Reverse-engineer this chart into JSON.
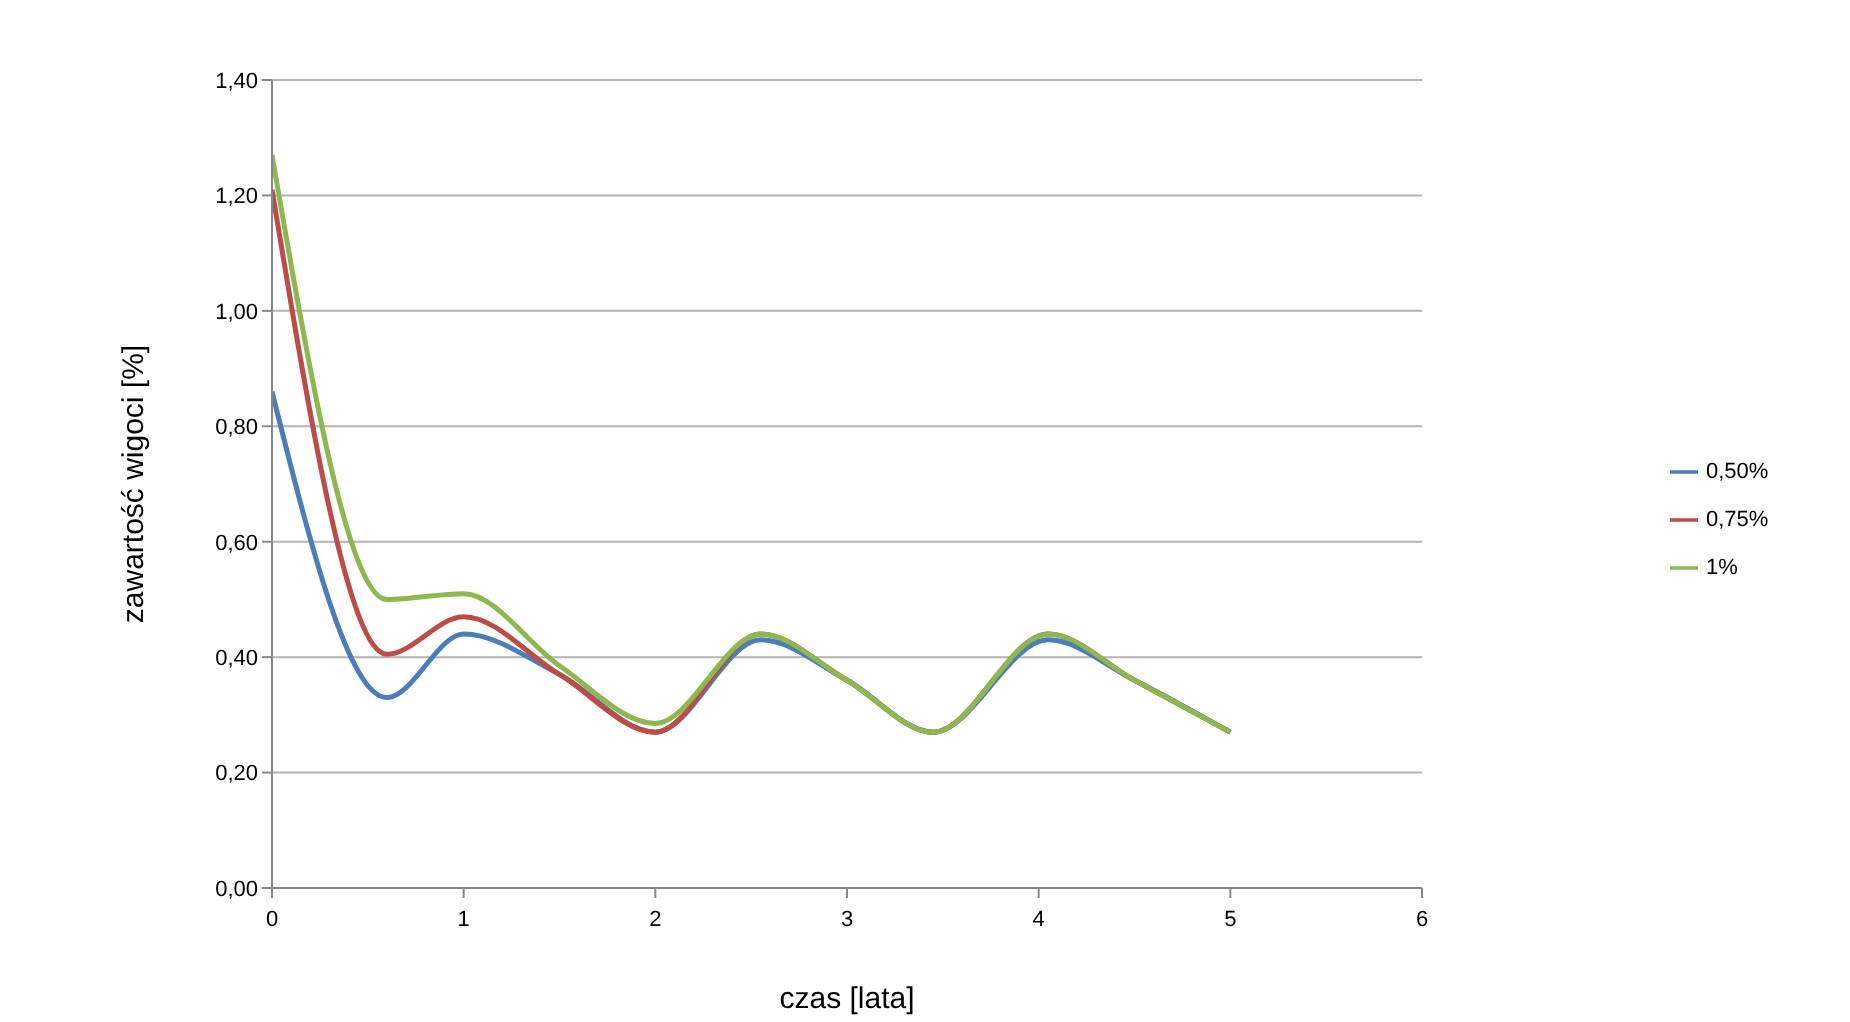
{
  "chart_data": {
    "type": "line",
    "xlabel": "czas [lata]",
    "ylabel": "zawartość wigoci  [%]",
    "x": [
      0,
      0.6,
      1,
      1.5,
      2,
      2.55,
      3,
      3.45,
      4.05,
      4.5,
      5
    ],
    "series": [
      {
        "name": "0,50%",
        "color": "#4a7ebb",
        "values": [
          0.86,
          0.33,
          0.44,
          0.37,
          0.27,
          0.43,
          0.36,
          0.27,
          0.43,
          0.36,
          0.27
        ]
      },
      {
        "name": "0,75%",
        "color": "#be4b48",
        "values": [
          1.21,
          0.405,
          0.47,
          0.37,
          0.27,
          0.44,
          0.36,
          0.27,
          0.44,
          0.36,
          0.27
        ]
      },
      {
        "name": "1%",
        "color": "#8cb84f",
        "values": [
          1.27,
          0.5,
          0.51,
          0.385,
          0.285,
          0.44,
          0.36,
          0.27,
          0.44,
          0.36,
          0.27
        ]
      }
    ],
    "xlim": [
      0,
      6
    ],
    "xticks": [
      0,
      1,
      2,
      3,
      4,
      5,
      6
    ],
    "ylim": [
      0,
      1.4
    ],
    "yticks": [
      {
        "value": 0,
        "label": "0,00"
      },
      {
        "value": 0.2,
        "label": "0,20"
      },
      {
        "value": 0.4,
        "label": "0,40"
      },
      {
        "value": 0.6,
        "label": "0,60"
      },
      {
        "value": 0.8,
        "label": "0,80"
      },
      {
        "value": 1,
        "label": "1,00"
      },
      {
        "value": 1.2,
        "label": "1,20"
      },
      {
        "value": 1.4,
        "label": "1,40"
      }
    ],
    "grid": "y",
    "legend": "right",
    "marker": "none",
    "line_style": "solid"
  }
}
